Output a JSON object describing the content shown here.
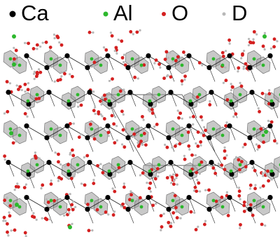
{
  "legend": [
    {
      "label": "Ca",
      "color": "#000000"
    },
    {
      "label": "Al",
      "color": "#2db82d"
    },
    {
      "label": "O",
      "color": "#d42020"
    },
    {
      "label": "D",
      "color": "#b8b8b8"
    }
  ]
}
